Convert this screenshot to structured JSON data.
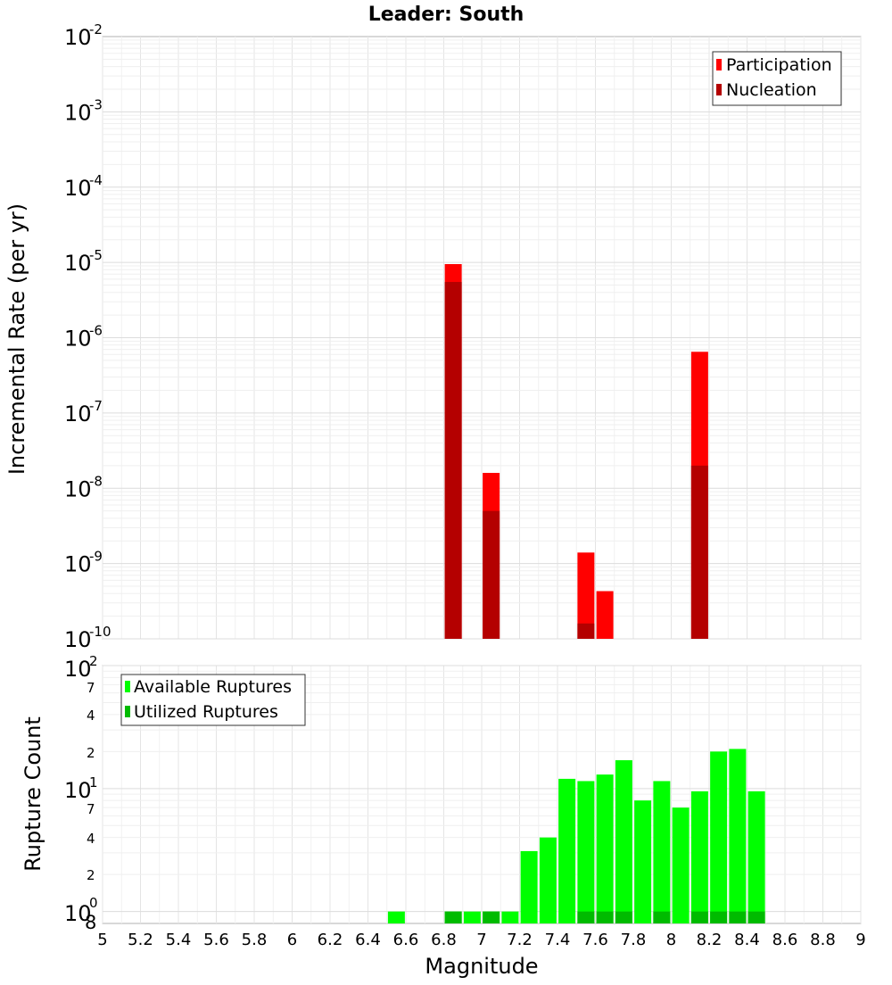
{
  "chart_data": [
    {
      "type": "bar",
      "title": "Leader: South",
      "xlabel": "",
      "ylabel": "Incremental Rate (per yr)",
      "yscale": "log",
      "ylim": [
        1e-10,
        0.01
      ],
      "xlim": [
        5,
        9
      ],
      "y_tick_bases": [
        "10",
        "10",
        "10",
        "10",
        "10",
        "10",
        "10",
        "10",
        "10"
      ],
      "y_tick_exponents": [
        "-2",
        "-3",
        "-4",
        "-5",
        "-6",
        "-7",
        "-8",
        "-9",
        "-10"
      ],
      "legend": {
        "position": "top-right"
      },
      "series": [
        {
          "name": "Participation",
          "color": "#ff0000",
          "points": [
            [
              6.85,
              9.5e-06
            ],
            [
              7.05,
              1.6e-08
            ],
            [
              7.55,
              1.4e-09
            ],
            [
              7.65,
              4.3e-10
            ],
            [
              8.15,
              6.5e-07
            ]
          ]
        },
        {
          "name": "Nucleation",
          "color": "#b40000",
          "points": [
            [
              6.85,
              5.5e-06
            ],
            [
              7.05,
              5e-09
            ],
            [
              7.55,
              1.6e-10
            ],
            [
              8.15,
              2e-08
            ]
          ]
        }
      ],
      "grid": true
    },
    {
      "type": "bar",
      "xlabel": "Magnitude",
      "ylabel": "Rupture Count",
      "yscale": "log",
      "ylim": [
        0.8,
        100
      ],
      "xlim": [
        5,
        9
      ],
      "x_ticks": [
        "5",
        "5.2",
        "5.4",
        "5.6",
        "5.8",
        "6",
        "6.2",
        "6.4",
        "6.6",
        "6.8",
        "7",
        "7.2",
        "7.4",
        "7.6",
        "7.8",
        "8",
        "8.2",
        "8.4",
        "8.6",
        "8.8",
        "9"
      ],
      "y_tick_text": {
        "top_base": "10",
        "top_exp": "2",
        "mid_base": "10",
        "mid_exp": "1",
        "bot_base": "10",
        "bot_exp": "0",
        "bot_extra": "8",
        "minor": [
          "7",
          "4",
          "2",
          "7",
          "4",
          "2"
        ]
      },
      "legend": {
        "position": "top-left"
      },
      "series": [
        {
          "name": "Available Ruptures",
          "color": "#00ff00",
          "points": [
            [
              6.55,
              1
            ],
            [
              6.85,
              1
            ],
            [
              6.95,
              1
            ],
            [
              7.05,
              1
            ],
            [
              7.15,
              1
            ],
            [
              7.25,
              3.1
            ],
            [
              7.35,
              4
            ],
            [
              7.45,
              12
            ],
            [
              7.55,
              11.5
            ],
            [
              7.65,
              13
            ],
            [
              7.75,
              17
            ],
            [
              7.85,
              8
            ],
            [
              7.95,
              11.5
            ],
            [
              8.05,
              7
            ],
            [
              8.15,
              9.5
            ],
            [
              8.25,
              20
            ],
            [
              8.35,
              21
            ],
            [
              8.45,
              9.5
            ]
          ]
        },
        {
          "name": "Utilized Ruptures",
          "color": "#00bb00",
          "points": [
            [
              6.85,
              1
            ],
            [
              7.05,
              1
            ],
            [
              7.55,
              1
            ],
            [
              7.65,
              1
            ],
            [
              7.75,
              1
            ],
            [
              7.95,
              1
            ],
            [
              8.15,
              1
            ],
            [
              8.25,
              1
            ],
            [
              8.35,
              1
            ],
            [
              8.45,
              1
            ]
          ]
        }
      ],
      "grid": true
    }
  ]
}
